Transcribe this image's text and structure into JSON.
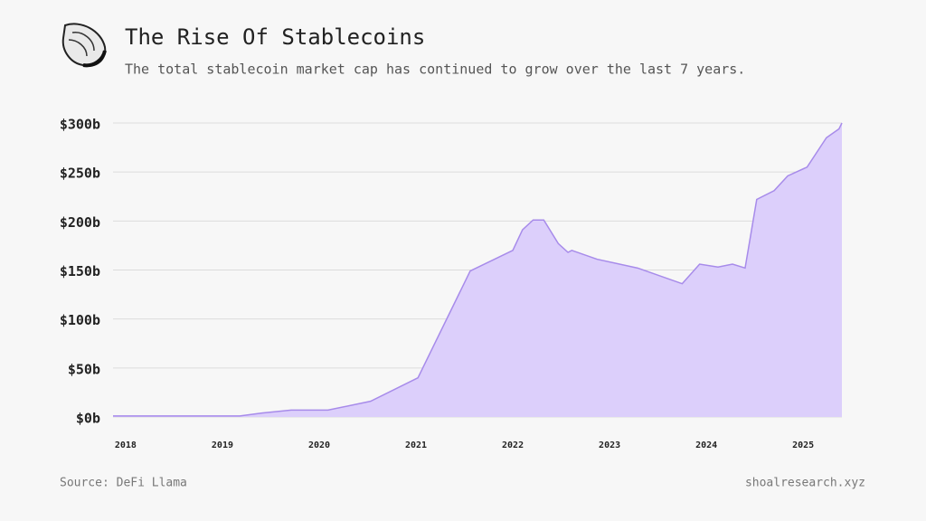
{
  "chart_data": {
    "type": "area",
    "title": "The Rise Of Stablecoins",
    "subtitle": "The total stablecoin market cap has continued to grow over the last 7 years.",
    "x": [
      2017.87,
      2019.18,
      2019.41,
      2019.71,
      2020.09,
      2020.53,
      2021.02,
      2021.56,
      2022.0,
      2022.1,
      2022.21,
      2022.32,
      2022.47,
      2022.57,
      2022.61,
      2022.87,
      2023.29,
      2023.75,
      2023.93,
      2024.12,
      2024.27,
      2024.4,
      2024.52,
      2024.7,
      2024.84,
      2025.04,
      2025.18,
      2025.24,
      2025.37,
      2025.4
    ],
    "values": [
      1,
      1,
      4,
      7,
      7,
      16,
      40,
      149,
      170,
      191,
      201,
      201,
      177,
      168,
      170,
      161,
      152,
      136,
      156,
      153,
      156,
      152,
      222,
      231,
      246,
      255,
      276,
      285,
      294,
      300
    ],
    "xlim": [
      2017.87,
      2025.4
    ],
    "ylim": [
      0,
      300
    ],
    "xticks": [
      2018,
      2019,
      2020,
      2021,
      2022,
      2023,
      2024,
      2025
    ],
    "yticks": [
      {
        "value": 0,
        "label": "$0b"
      },
      {
        "value": 50,
        "label": "$50b"
      },
      {
        "value": 100,
        "label": "$100b"
      },
      {
        "value": 150,
        "label": "$150b"
      },
      {
        "value": 200,
        "label": "$200b"
      },
      {
        "value": 250,
        "label": "$250b"
      },
      {
        "value": 300,
        "label": "$300b"
      }
    ],
    "color": "#dccffb",
    "line_color": "#a78bea",
    "grid": true
  },
  "footer": {
    "source": "Source: DeFi Llama",
    "site": "shoalresearch.xyz"
  }
}
